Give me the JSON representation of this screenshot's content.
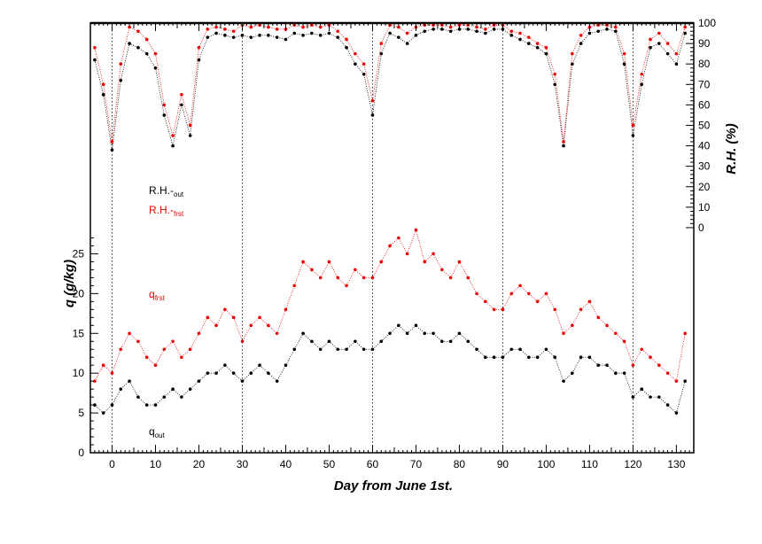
{
  "chart_data": {
    "type": "scatter",
    "title": "",
    "xlabel": "Day  from  June  1st.",
    "ylabel_left": "q  (g/kg)",
    "ylabel_right": "R.H.  (%)",
    "xlim": [
      -5,
      134
    ],
    "ylim_left": [
      0,
      54
    ],
    "ylim_right": [
      -110,
      100
    ],
    "x_ticks": [
      0,
      10,
      20,
      30,
      40,
      50,
      60,
      70,
      80,
      90,
      100,
      110,
      120,
      130
    ],
    "y_ticks_left": [
      0,
      5,
      10,
      15,
      20,
      25
    ],
    "y_ticks_right": [
      0,
      10,
      20,
      30,
      40,
      50,
      60,
      70,
      80,
      90,
      100
    ],
    "vertical_reference_lines": [
      0,
      30,
      60,
      90,
      120
    ],
    "grid": false,
    "series": [
      {
        "name": "R.H.-out",
        "label_main": "R.H.-",
        "label_sub": "out",
        "axis": "right",
        "color": "#000000",
        "x": [
          -4,
          -2,
          0,
          2,
          4,
          6,
          8,
          10,
          12,
          14,
          16,
          18,
          20,
          22,
          24,
          26,
          28,
          30,
          32,
          34,
          36,
          38,
          40,
          42,
          44,
          46,
          48,
          50,
          52,
          54,
          56,
          58,
          60,
          62,
          64,
          66,
          68,
          70,
          72,
          74,
          76,
          78,
          80,
          82,
          84,
          86,
          88,
          90,
          92,
          94,
          96,
          98,
          100,
          102,
          104,
          106,
          108,
          110,
          112,
          114,
          116,
          118,
          120,
          122,
          124,
          126,
          128,
          130,
          132
        ],
        "values": [
          82,
          65,
          38,
          72,
          90,
          88,
          85,
          78,
          55,
          40,
          60,
          45,
          82,
          93,
          95,
          94,
          93,
          94,
          93,
          94,
          94,
          93,
          92,
          95,
          94,
          95,
          94,
          95,
          93,
          88,
          80,
          75,
          55,
          85,
          95,
          93,
          90,
          94,
          96,
          97,
          97,
          96,
          97,
          97,
          96,
          95,
          97,
          97,
          94,
          92,
          90,
          88,
          85,
          70,
          40,
          80,
          90,
          95,
          96,
          97,
          96,
          80,
          45,
          70,
          88,
          90,
          85,
          80,
          95
        ]
      },
      {
        "name": "R.H.-frst",
        "label_main": "R.H.-",
        "label_sub": "frst",
        "axis": "right",
        "color": "#ee0000",
        "x": [
          -4,
          -2,
          0,
          2,
          4,
          6,
          8,
          10,
          12,
          14,
          16,
          18,
          20,
          22,
          24,
          26,
          28,
          30,
          32,
          34,
          36,
          38,
          40,
          42,
          44,
          46,
          48,
          50,
          52,
          54,
          56,
          58,
          60,
          62,
          64,
          66,
          68,
          70,
          72,
          74,
          76,
          78,
          80,
          82,
          84,
          86,
          88,
          90,
          92,
          94,
          96,
          98,
          100,
          102,
          104,
          106,
          108,
          110,
          112,
          114,
          116,
          118,
          120,
          122,
          124,
          126,
          128,
          130,
          132
        ],
        "values": [
          88,
          70,
          42,
          80,
          98,
          96,
          92,
          85,
          60,
          45,
          65,
          50,
          88,
          97,
          98,
          97,
          96,
          99,
          98,
          99,
          98,
          97,
          97,
          99,
          98,
          99,
          98,
          99,
          96,
          92,
          85,
          80,
          62,
          90,
          99,
          98,
          95,
          98,
          99,
          99,
          99,
          98,
          99,
          99,
          98,
          97,
          99,
          99,
          96,
          95,
          93,
          90,
          88,
          75,
          42,
          85,
          94,
          98,
          99,
          99,
          98,
          85,
          50,
          75,
          92,
          95,
          90,
          85,
          98
        ]
      },
      {
        "name": "q-frst",
        "label_main": "q",
        "label_sub": "frst",
        "axis": "left",
        "color": "#ee0000",
        "x": [
          -4,
          -2,
          0,
          2,
          4,
          6,
          8,
          10,
          12,
          14,
          16,
          18,
          20,
          22,
          24,
          26,
          28,
          30,
          32,
          34,
          36,
          38,
          40,
          42,
          44,
          46,
          48,
          50,
          52,
          54,
          56,
          58,
          60,
          62,
          64,
          66,
          68,
          70,
          72,
          74,
          76,
          78,
          80,
          82,
          84,
          86,
          88,
          90,
          92,
          94,
          96,
          98,
          100,
          102,
          104,
          106,
          108,
          110,
          112,
          114,
          116,
          118,
          120,
          122,
          124,
          126,
          128,
          130,
          132
        ],
        "values": [
          9,
          11,
          10,
          13,
          15,
          14,
          12,
          11,
          13,
          14,
          12,
          13,
          15,
          17,
          16,
          18,
          17,
          14,
          16,
          17,
          16,
          15,
          18,
          21,
          24,
          23,
          22,
          24,
          22,
          21,
          23,
          22,
          22,
          24,
          26,
          27,
          25,
          28,
          24,
          25,
          23,
          22,
          24,
          22,
          20,
          19,
          18,
          18,
          20,
          21,
          20,
          19,
          20,
          18,
          15,
          16,
          18,
          19,
          17,
          16,
          15,
          14,
          11,
          13,
          12,
          11,
          10,
          9,
          15
        ]
      },
      {
        "name": "q-out",
        "label_main": "q",
        "label_sub": "out",
        "axis": "left",
        "color": "#000000",
        "x": [
          -4,
          -2,
          0,
          2,
          4,
          6,
          8,
          10,
          12,
          14,
          16,
          18,
          20,
          22,
          24,
          26,
          28,
          30,
          32,
          34,
          36,
          38,
          40,
          42,
          44,
          46,
          48,
          50,
          52,
          54,
          56,
          58,
          60,
          62,
          64,
          66,
          68,
          70,
          72,
          74,
          76,
          78,
          80,
          82,
          84,
          86,
          88,
          90,
          92,
          94,
          96,
          98,
          100,
          102,
          104,
          106,
          108,
          110,
          112,
          114,
          116,
          118,
          120,
          122,
          124,
          126,
          128,
          130,
          132
        ],
        "values": [
          6,
          5,
          6,
          8,
          9,
          7,
          6,
          6,
          7,
          8,
          7,
          8,
          9,
          10,
          10,
          11,
          10,
          9,
          10,
          11,
          10,
          9,
          11,
          13,
          15,
          14,
          13,
          14,
          13,
          13,
          14,
          13,
          13,
          14,
          15,
          16,
          15,
          16,
          15,
          15,
          14,
          14,
          15,
          14,
          13,
          12,
          12,
          12,
          13,
          13,
          12,
          12,
          13,
          12,
          9,
          10,
          12,
          12,
          11,
          11,
          10,
          10,
          7,
          8,
          7,
          7,
          6,
          5,
          9
        ]
      }
    ],
    "legend_placement": "inline"
  }
}
